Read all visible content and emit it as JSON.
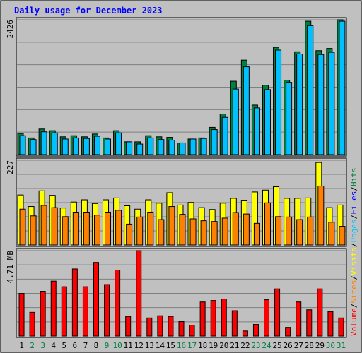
{
  "chart_data": {
    "type": "bar",
    "title": "Daily usage for December 2023",
    "categories": [
      "1",
      "2",
      "3",
      "4",
      "5",
      "6",
      "7",
      "8",
      "9",
      "10",
      "11",
      "12",
      "13",
      "14",
      "15",
      "16",
      "17",
      "18",
      "19",
      "20",
      "21",
      "22",
      "23",
      "24",
      "25",
      "26",
      "27",
      "28",
      "29",
      "30",
      "31"
    ],
    "weekend_categories": [
      "2",
      "3",
      "9",
      "10",
      "16",
      "17",
      "23",
      "24",
      "30",
      "31"
    ],
    "panels": [
      {
        "id": "hits-files",
        "ymax_label": "2426",
        "ylim": [
          0,
          2426
        ],
        "series": [
          {
            "name": "Hits",
            "color": "#008040",
            "values": [
              380,
              300,
              460,
              430,
              320,
              340,
              320,
              370,
              300,
              430,
              230,
              230,
              340,
              320,
              310,
              210,
              280,
              300,
              490,
              730,
              1320,
              1700,
              890,
              1250,
              1930,
              1340,
              1850,
              2400,
              1870,
              1910,
              2426
            ]
          },
          {
            "name": "Files",
            "color": "#00c0ff",
            "values": [
              340,
              270,
              410,
              390,
              280,
              300,
              290,
              330,
              280,
              390,
              230,
              190,
              300,
              270,
              260,
              210,
              280,
              290,
              450,
              670,
              1180,
              1580,
              840,
              1170,
              1880,
              1300,
              1810,
              2320,
              1800,
              1840,
              2400
            ]
          }
        ]
      },
      {
        "id": "pages-visits",
        "ymax_label": "227",
        "ylim": [
          0,
          227
        ],
        "series": [
          {
            "name": "Pages",
            "color": "#ffff00",
            "values": [
              134,
              103,
              145,
              133,
              99,
              115,
              121,
              111,
              121,
              126,
              105,
              96,
              121,
              112,
              140,
              107,
              114,
              100,
              95,
              112,
              125,
              120,
              142,
              147,
              156,
              125,
              125,
              126,
              221,
              100,
              107
            ]
          },
          {
            "name": "Visits",
            "color": "#ff8000",
            "values": [
              96,
              78,
              106,
              100,
              76,
              88,
              88,
              80,
              88,
              93,
              56,
              75,
              88,
              68,
              103,
              82,
              70,
              65,
              63,
              72,
              87,
              83,
              58,
              113,
              76,
              75,
              68,
              75,
              158,
              61,
              50
            ]
          }
        ]
      },
      {
        "id": "sites-volume",
        "ymax_label": "4.71 MB",
        "ylim": [
          0,
          4.71
        ],
        "series": [
          {
            "name": "Sites",
            "color": "#ff8000",
            "values": []
          },
          {
            "name": "Volume",
            "color": "#ff0000",
            "values": [
              2.35,
              1.31,
              2.47,
              3.03,
              2.72,
              3.7,
              2.72,
              4.06,
              2.84,
              3.64,
              1.08,
              4.71,
              1.0,
              1.12,
              1.08,
              0.8,
              0.6,
              1.88,
              1.96,
              2.04,
              1.4,
              0.28,
              0.64,
              2.0,
              2.6,
              0.48,
              1.88,
              1.45,
              2.6,
              1.35,
              1.0
            ]
          }
        ]
      }
    ],
    "legend": [
      {
        "name": "Volume",
        "color": "#ff0000"
      },
      {
        "name": "/",
        "color": "#000000"
      },
      {
        "name": "Sites",
        "color": "#ff8000"
      },
      {
        "name": "/",
        "color": "#000000"
      },
      {
        "name": "Visits",
        "color": "#ffff00"
      },
      {
        "name": "/",
        "color": "#000000"
      },
      {
        "name": "Pages",
        "color": "#00c0ff"
      },
      {
        "name": "/",
        "color": "#000000"
      },
      {
        "name": "Files",
        "color": "#0000ff"
      },
      {
        "name": "/",
        "color": "#000000"
      },
      {
        "name": "Hits",
        "color": "#008040"
      }
    ],
    "colors": {
      "background": "#c0c0c0",
      "title": "#0000ff",
      "weekday_tick": "#000000",
      "weekend_tick": "#008040",
      "gridline": "#808080"
    }
  }
}
